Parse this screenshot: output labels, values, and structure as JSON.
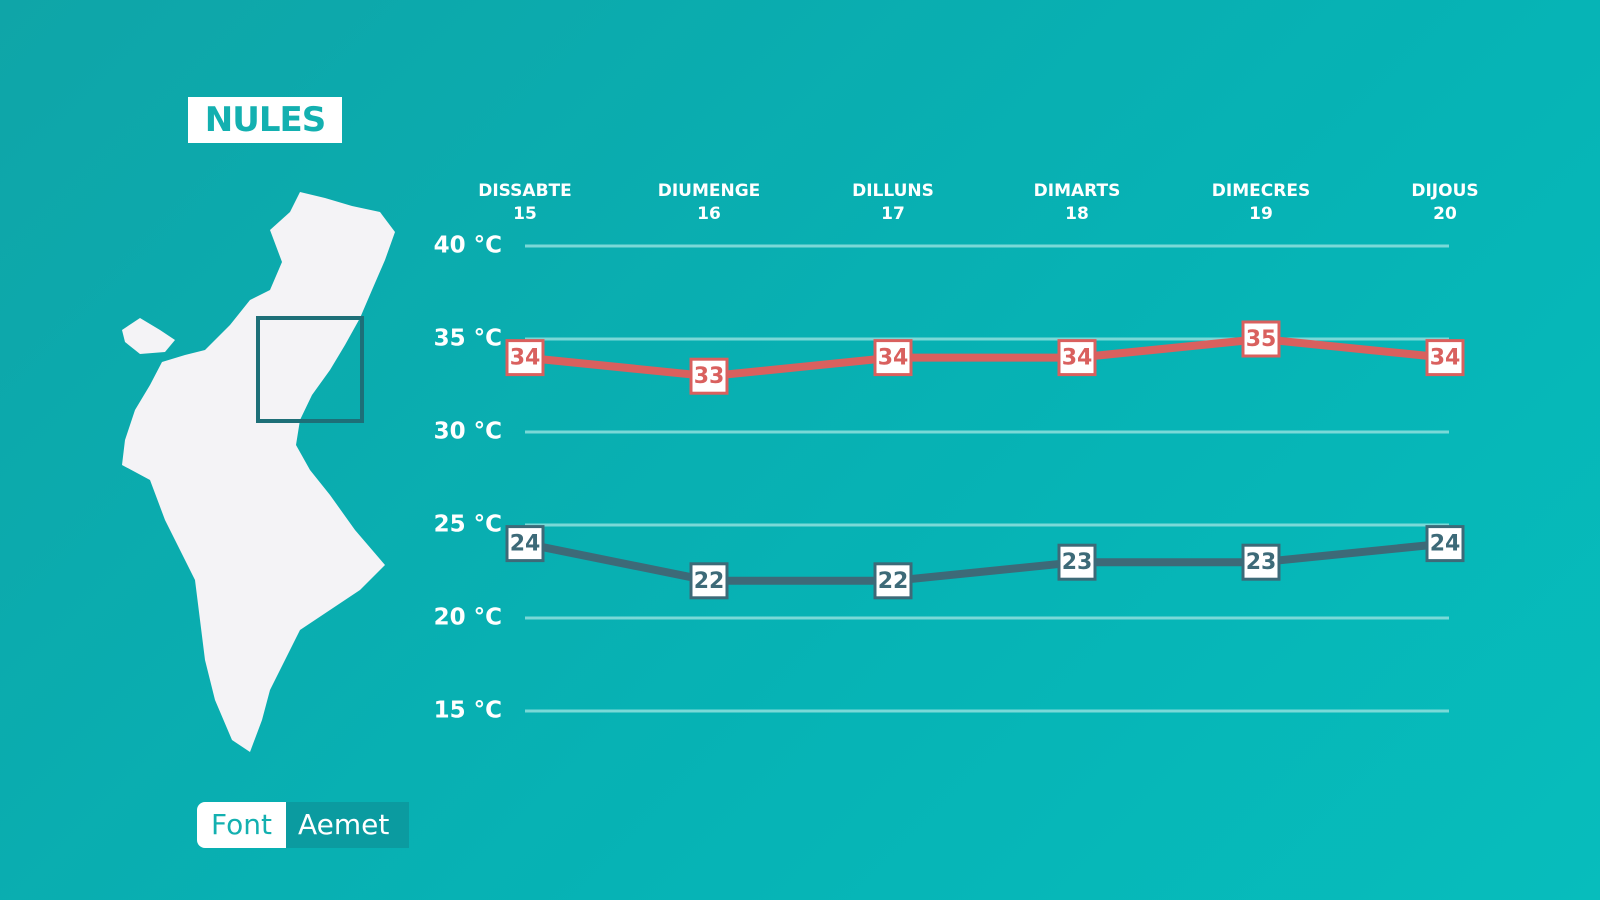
{
  "chart_data": {
    "type": "line",
    "title": "NULES",
    "categories": [
      "DISSABTE\n15",
      "DIUMENGE\n16",
      "DILLUNS\n17",
      "DIMARTS\n18",
      "DIMECRES\n19",
      "DIJOUS\n20"
    ],
    "series": [
      {
        "color": "#d9605e",
        "values": [
          34,
          33,
          34,
          34,
          35,
          34
        ]
      },
      {
        "color": "#3d6a78",
        "values": [
          24,
          22,
          22,
          23,
          23,
          24
        ]
      }
    ],
    "ylim": [
      15,
      40
    ],
    "yticks": [
      {
        "value": 15,
        "label": "15 °C"
      },
      {
        "value": 20,
        "label": "20 °C"
      },
      {
        "value": 25,
        "label": "25 °C"
      },
      {
        "value": 30,
        "label": "30 °C"
      },
      {
        "value": 35,
        "label": "35 °C"
      },
      {
        "value": 40,
        "label": "40 °C"
      }
    ],
    "grid": true,
    "source": {
      "label": "Font",
      "value": "Aemet"
    }
  }
}
